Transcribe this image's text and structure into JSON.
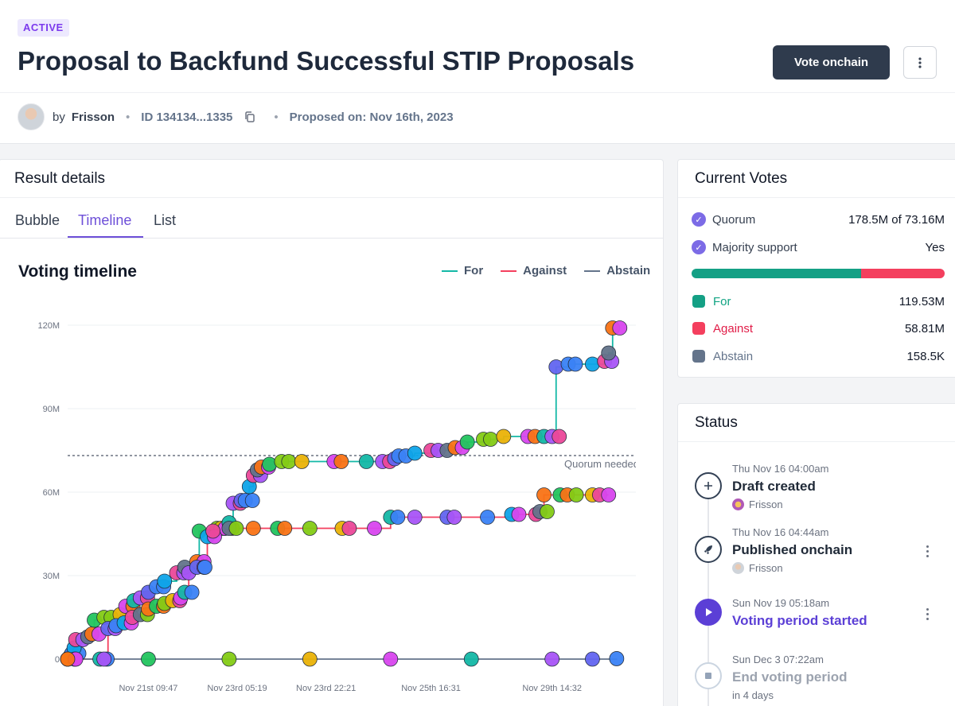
{
  "status_badge": "ACTIVE",
  "title": "Proposal to Backfund Successful STIP Proposals",
  "actions": {
    "vote": "Vote onchain",
    "more": "more-vertical-icon"
  },
  "meta": {
    "by": "by",
    "author": "Frisson",
    "id": "ID 134134...1335",
    "proposed": "Proposed on: Nov 16th, 2023"
  },
  "result": {
    "title": "Result details",
    "tabs": [
      {
        "label": "Bubble",
        "active": false
      },
      {
        "label": "Timeline",
        "active": true
      },
      {
        "label": "List",
        "active": false
      }
    ]
  },
  "chart_data": {
    "type": "line",
    "title": "Voting timeline",
    "x_ticks": [
      "Nov 21st 09:47",
      "Nov 23rd 05:19",
      "Nov 23rd 22:21",
      "Nov 25th 16:31",
      "Nov 29th 14:32"
    ],
    "y_ticks": [
      "0",
      "30M",
      "60M",
      "90M",
      "120M"
    ],
    "ylim": [
      0,
      120
    ],
    "y_unit": "M",
    "grid": true,
    "legend_position": "top-right",
    "annotation": {
      "label": "Quorum needed",
      "y": 73.16
    },
    "series": [
      {
        "name": "For",
        "color": "#14b8a6",
        "points": [
          [
            0,
            0
          ],
          [
            0.3,
            1
          ],
          [
            0.5,
            2
          ],
          [
            0.8,
            4
          ],
          [
            1.0,
            7
          ],
          [
            2.5,
            8
          ],
          [
            3.0,
            9
          ],
          [
            3.3,
            14
          ],
          [
            4.5,
            15
          ],
          [
            6.5,
            16
          ],
          [
            7.2,
            19
          ],
          [
            8.2,
            21
          ],
          [
            9.0,
            22
          ],
          [
            10.0,
            24
          ],
          [
            11.0,
            26
          ],
          [
            12.0,
            28
          ],
          [
            13.5,
            31
          ],
          [
            14.5,
            33
          ],
          [
            16.0,
            35
          ],
          [
            16.3,
            46
          ],
          [
            18.5,
            47
          ],
          [
            19.0,
            47
          ],
          [
            19.5,
            47
          ],
          [
            20.0,
            49
          ],
          [
            20.5,
            56
          ],
          [
            21.5,
            57
          ],
          [
            22.0,
            57
          ],
          [
            22.5,
            62
          ],
          [
            23.0,
            66
          ],
          [
            23.5,
            68
          ],
          [
            24.0,
            69
          ],
          [
            25.0,
            70
          ],
          [
            26.5,
            71
          ],
          [
            29.0,
            71
          ],
          [
            33.0,
            71
          ],
          [
            37.0,
            71
          ],
          [
            39.0,
            71
          ],
          [
            40.5,
            72
          ],
          [
            41.0,
            73
          ],
          [
            43.0,
            74
          ],
          [
            45.0,
            75
          ],
          [
            47.0,
            75
          ],
          [
            48.0,
            76
          ],
          [
            49.5,
            78
          ],
          [
            51.5,
            79
          ],
          [
            54.0,
            80
          ],
          [
            57.0,
            80
          ],
          [
            59.0,
            80
          ],
          [
            60.0,
            80
          ],
          [
            60.5,
            105
          ],
          [
            62.0,
            106
          ],
          [
            65.0,
            106
          ],
          [
            66.5,
            107
          ],
          [
            67.0,
            110
          ],
          [
            67.5,
            119
          ]
        ]
      },
      {
        "name": "Against",
        "color": "#f43f5e",
        "points": [
          [
            0,
            0
          ],
          [
            1.0,
            0
          ],
          [
            4.0,
            0
          ],
          [
            4.5,
            0
          ],
          [
            5.0,
            11
          ],
          [
            6.0,
            12
          ],
          [
            7.0,
            13
          ],
          [
            8.0,
            15
          ],
          [
            9.0,
            16
          ],
          [
            10.0,
            18
          ],
          [
            11.0,
            19
          ],
          [
            12.0,
            20
          ],
          [
            13.0,
            21
          ],
          [
            14.0,
            22
          ],
          [
            14.5,
            24
          ],
          [
            15.0,
            31
          ],
          [
            16.0,
            33
          ],
          [
            17.0,
            33
          ],
          [
            17.3,
            44
          ],
          [
            18.0,
            46
          ],
          [
            20.0,
            47
          ],
          [
            23.0,
            47
          ],
          [
            26.0,
            47
          ],
          [
            30.0,
            47
          ],
          [
            34.0,
            47
          ],
          [
            38.0,
            47
          ],
          [
            40.0,
            51
          ],
          [
            43.0,
            51
          ],
          [
            47.0,
            51
          ],
          [
            52.0,
            51
          ],
          [
            55.0,
            52
          ],
          [
            58.0,
            52
          ],
          [
            58.5,
            53
          ],
          [
            59.0,
            59
          ],
          [
            61.0,
            59
          ],
          [
            63.0,
            59
          ],
          [
            65.0,
            59
          ],
          [
            67.0,
            59
          ]
        ]
      },
      {
        "name": "Abstain",
        "color": "#64748b",
        "points": [
          [
            0,
            0
          ],
          [
            10,
            0
          ],
          [
            20,
            0
          ],
          [
            30,
            0
          ],
          [
            40,
            0
          ],
          [
            50,
            0
          ],
          [
            60,
            0
          ],
          [
            65,
            0
          ],
          [
            68,
            0.16
          ]
        ]
      }
    ],
    "x_tick_positions": [
      10,
      21,
      32,
      45,
      60
    ],
    "x_max": 69
  },
  "current_votes": {
    "title": "Current Votes",
    "quorum_label": "Quorum",
    "quorum_value": "178.5M of 73.16M",
    "majority_label": "Majority support",
    "majority_value": "Yes",
    "bar": {
      "for": 119.53,
      "against": 58.81,
      "abstain": 0.1585
    },
    "rows": [
      {
        "label": "For",
        "value": "119.53M",
        "color": "#10a382"
      },
      {
        "label": "Against",
        "value": "58.81M",
        "color": "#f43f5e"
      },
      {
        "label": "Abstain",
        "value": "158.5K",
        "color": "#64748b"
      }
    ]
  },
  "status": {
    "title": "Status",
    "steps": [
      {
        "time": "Thu Nov 16 04:00am",
        "name": "Draft created",
        "who": "Frisson",
        "icon": "plus-icon"
      },
      {
        "time": "Thu Nov 16 04:44am",
        "name": "Published onchain",
        "who": "Frisson",
        "icon": "rocket-icon"
      },
      {
        "time": "Sun Nov 19 05:18am",
        "name": "Voting period started",
        "icon": "play-icon"
      },
      {
        "time": "Sun Dec 3 07:22am",
        "name": "End voting period",
        "sub": "in 4 days",
        "icon": "stop-icon"
      }
    ]
  }
}
